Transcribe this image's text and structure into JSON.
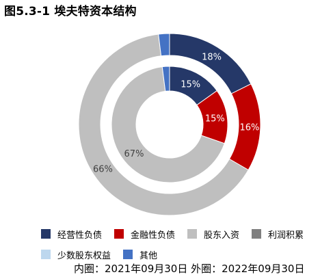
{
  "title": "图5.3-1 埃夫特资本结构",
  "note": "内圈：2021年09月30日 外圈：2022年09月30日",
  "colors": {
    "经营性负债": "#253868",
    "金融性负债": "#C00000",
    "股东入资": "#BFBFBF",
    "利润积累": "#7F7F7F",
    "少数股东权益": "#BDD7EE",
    "其他": "#4472C4"
  },
  "chart_data": {
    "type": "pie",
    "variant": "nested-donut",
    "title": "图5.3-1 埃夫特资本结构",
    "categories": [
      "经营性负债",
      "金融性负债",
      "股东入资",
      "利润积累",
      "少数股东权益",
      "其他"
    ],
    "series": [
      {
        "name": "外圈：2022年09月30日",
        "values": [
          18,
          16,
          66,
          0,
          0,
          2
        ],
        "labels": [
          "18%",
          "16%",
          "66%",
          "",
          "",
          ""
        ]
      },
      {
        "name": "内圈：2021年09月30日",
        "values": [
          15,
          15,
          67,
          0,
          0,
          2
        ],
        "labels": [
          "15%",
          "15%",
          "67%",
          "",
          "",
          ""
        ]
      }
    ],
    "legend_position": "bottom"
  }
}
